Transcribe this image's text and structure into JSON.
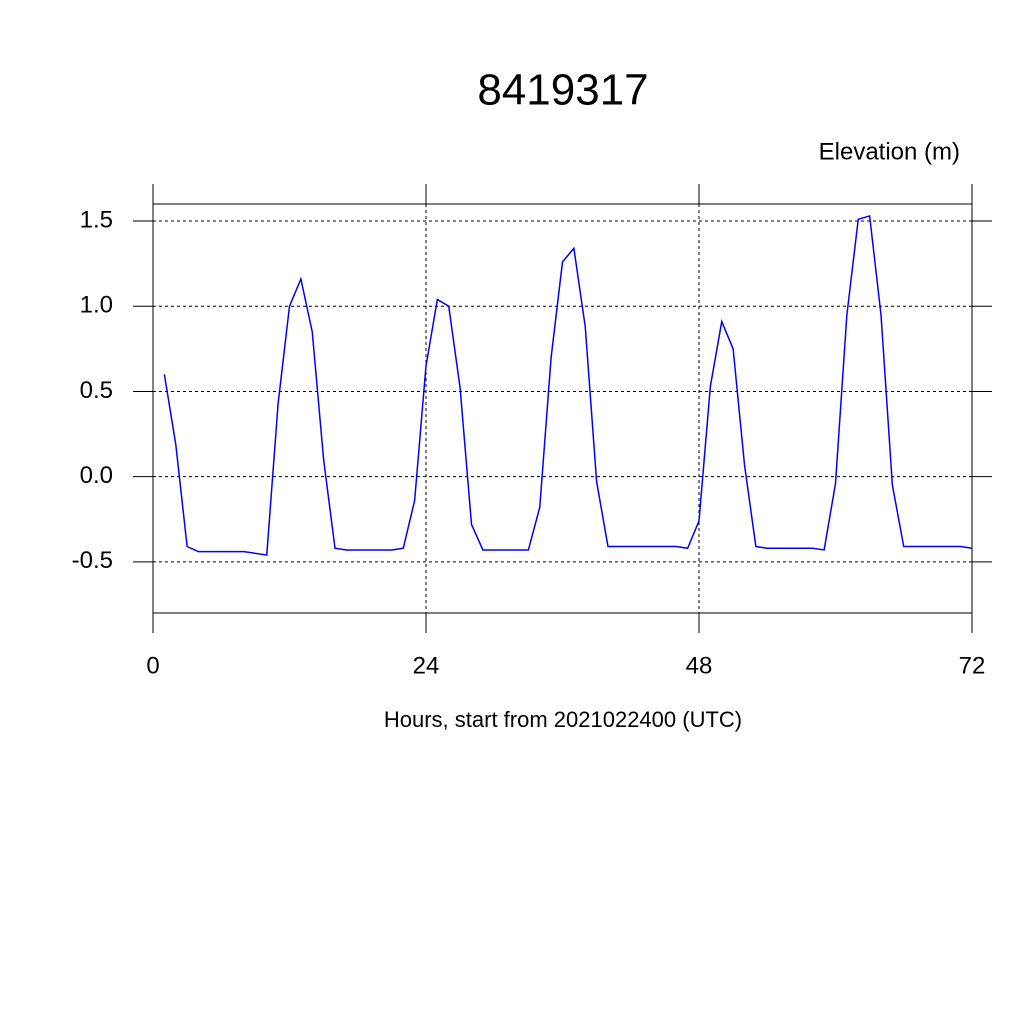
{
  "chart_data": {
    "type": "line",
    "title": "8419317",
    "y_label": "Elevation (m)",
    "x_label": "Hours, start from 2021022400 (UTC)",
    "x": [
      1,
      2,
      3,
      4,
      5,
      6,
      7,
      8,
      9,
      10,
      11,
      12,
      13,
      14,
      15,
      16,
      17,
      18,
      19,
      20,
      21,
      22,
      23,
      24,
      25,
      26,
      27,
      28,
      29,
      30,
      31,
      32,
      33,
      34,
      35,
      36,
      37,
      38,
      39,
      40,
      41,
      42,
      43,
      44,
      45,
      46,
      47,
      48,
      49,
      50,
      51,
      52,
      53,
      54,
      55,
      56,
      57,
      58,
      59,
      60,
      61,
      62,
      63,
      64,
      65,
      66,
      67,
      68,
      69,
      70,
      71,
      72
    ],
    "series": [
      {
        "name": "Elevation",
        "color": "#0000ff",
        "values": [
          0.6,
          0.19,
          -0.41,
          -0.44,
          -0.44,
          -0.44,
          -0.44,
          -0.44,
          -0.45,
          -0.46,
          0.43,
          1.0,
          1.16,
          0.85,
          0.1,
          -0.42,
          -0.43,
          -0.43,
          -0.43,
          -0.43,
          -0.43,
          -0.42,
          -0.14,
          0.65,
          1.04,
          1.0,
          0.52,
          -0.28,
          -0.43,
          -0.43,
          -0.43,
          -0.43,
          -0.43,
          -0.18,
          0.7,
          1.26,
          1.34,
          0.88,
          -0.03,
          -0.41,
          -0.41,
          -0.41,
          -0.41,
          -0.41,
          -0.41,
          -0.41,
          -0.42,
          -0.26,
          0.53,
          0.91,
          0.75,
          0.07,
          -0.41,
          -0.42,
          -0.42,
          -0.42,
          -0.42,
          -0.42,
          -0.43,
          -0.04,
          0.95,
          1.51,
          1.53,
          0.95,
          -0.05,
          -0.41,
          -0.41,
          -0.41,
          -0.41,
          -0.41,
          -0.41,
          -0.42
        ]
      }
    ],
    "xlim": [
      0,
      72
    ],
    "xticks": [
      0,
      24,
      48,
      72
    ],
    "ylim": [
      -0.8,
      1.6
    ],
    "yticks": [
      -0.5,
      {
        "value": 0,
        "label": "0.0"
      },
      0.5,
      {
        "value": 1,
        "label": "1.0"
      },
      1.5
    ],
    "grid": true
  }
}
